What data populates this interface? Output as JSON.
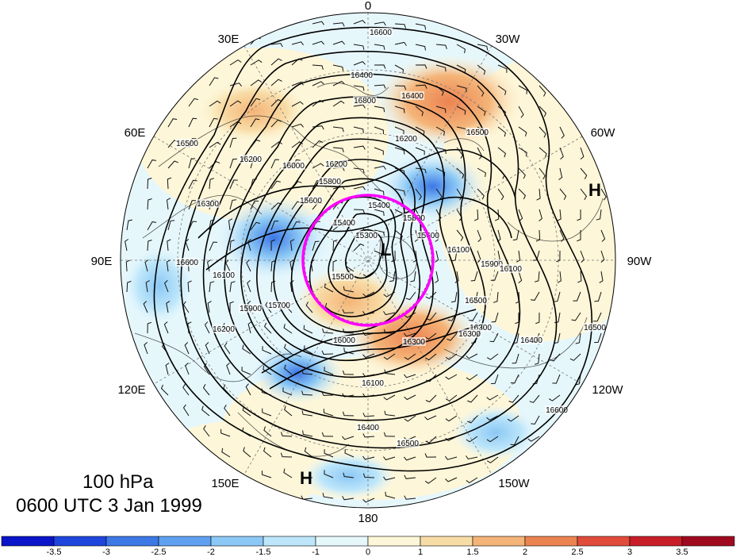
{
  "map": {
    "longitude_labels": [
      {
        "text": "0",
        "lon": 0
      },
      {
        "text": "30W",
        "lon": -30
      },
      {
        "text": "60W",
        "lon": -60
      },
      {
        "text": "90W",
        "lon": -90
      },
      {
        "text": "120W",
        "lon": -120
      },
      {
        "text": "150W",
        "lon": -150
      },
      {
        "text": "180",
        "lon": 180
      },
      {
        "text": "150E",
        "lon": 150
      },
      {
        "text": "120E",
        "lon": 120
      },
      {
        "text": "90E",
        "lon": 90
      },
      {
        "text": "60E",
        "lon": 60
      },
      {
        "text": "30E",
        "lon": 30
      }
    ],
    "contour_labels": [
      "16600",
      "16400",
      "16800",
      "16200",
      "16500",
      "16200",
      "16000",
      "15800",
      "15600",
      "15400",
      "15400",
      "15300",
      "15500",
      "15600",
      "15800",
      "16100",
      "15900",
      "15700",
      "16000",
      "16100",
      "16300",
      "16400",
      "16500",
      "16600",
      "16200",
      "16600",
      "15900",
      "16100",
      "16400",
      "16500",
      "16300",
      "16300",
      "16100",
      "16300",
      "16400",
      "16500",
      "16200",
      "16500"
    ],
    "pressure_markers": [
      {
        "text": "L",
        "kind": "low"
      },
      {
        "text": "H",
        "kind": "high"
      },
      {
        "text": "H",
        "kind": "high"
      }
    ],
    "highlight_color": "#ff00ff",
    "contour_color": "#000000"
  },
  "caption": {
    "level": "100 hPa",
    "time": "0600 UTC 3 Jan 1999"
  },
  "colorbar": {
    "labels": [
      "-3.5",
      "-3",
      "-2.5",
      "-2",
      "-1.5",
      "-1",
      "0",
      "1",
      "1.5",
      "2",
      "2.5",
      "3",
      "3.5"
    ],
    "colors": [
      "#0a14c8",
      "#1e46dc",
      "#3c78e6",
      "#5fa0f0",
      "#8cc8f5",
      "#bde6fa",
      "#e6f7fc",
      "#fdf6d8",
      "#f8dca6",
      "#f4b478",
      "#ec8452",
      "#e04b3a",
      "#c81e28",
      "#a00a1e"
    ]
  }
}
